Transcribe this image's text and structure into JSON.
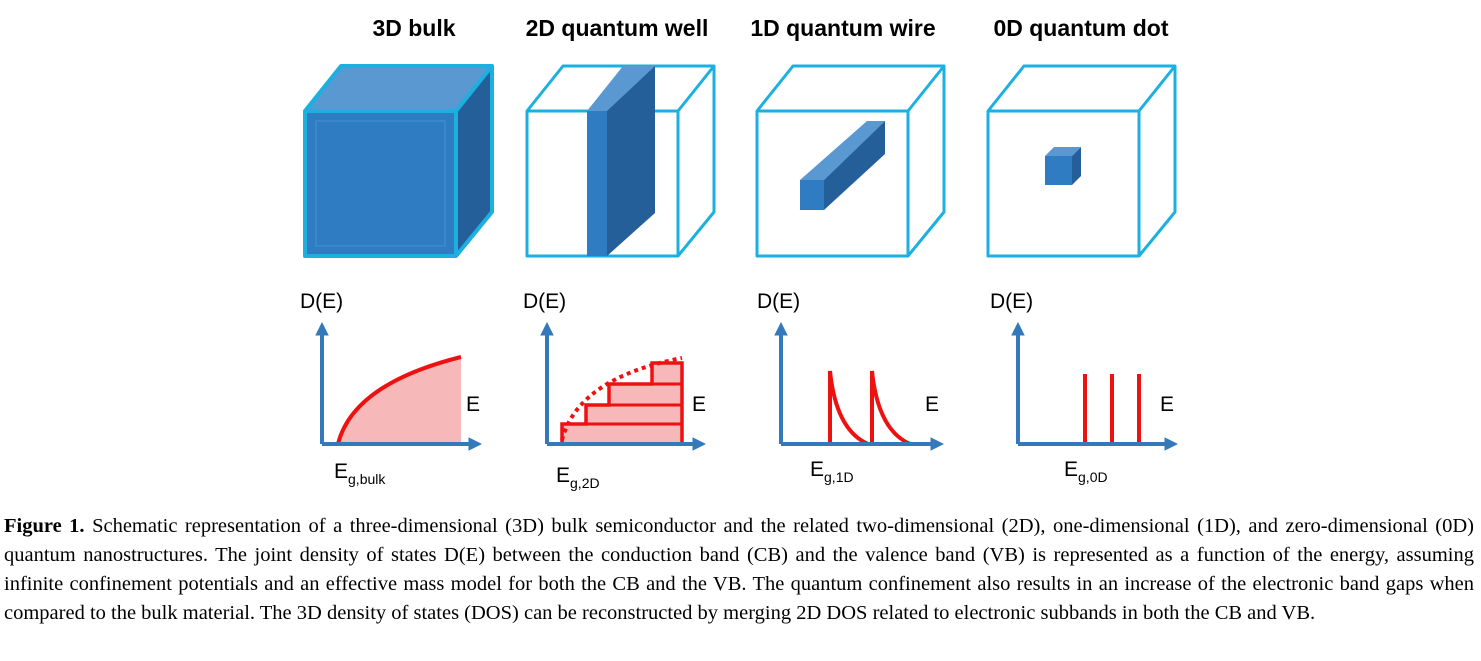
{
  "panels": [
    {
      "title": "3D bulk",
      "ylabel": "D(E)",
      "xlabel": "E",
      "eg_main": "E",
      "eg_sub": "g,bulk"
    },
    {
      "title": "2D quantum well",
      "ylabel": "D(E)",
      "xlabel": "E",
      "eg_main": "E",
      "eg_sub": "g,2D"
    },
    {
      "title": "1D quantum wire",
      "ylabel": "D(E)",
      "xlabel": "E",
      "eg_main": "E",
      "eg_sub": "g,1D"
    },
    {
      "title": "0D quantum dot",
      "ylabel": "D(E)",
      "xlabel": "E",
      "eg_main": "E",
      "eg_sub": "g,0D"
    }
  ],
  "caption": {
    "label": "Figure 1.",
    "text": "Schematic representation of a three-dimensional (3D) bulk semiconductor and the related two-dimensional (2D), one-dimensional (1D), and zero-dimensional (0D) quantum nanostructures. The joint density of states D(E) between the conduction band (CB) and the valence band (VB) is represented as a function of the energy, assuming infinite confinement potentials and an effective mass model for both the CB and the VB. The quantum confinement also results in an increase of the electronic band gaps when compared to the bulk material. The 3D density of states (DOS) can be reconstructed by merging 2D DOS related to electronic subbands in both the CB and VB."
  },
  "colors": {
    "cube_outline": "#1bb0e0",
    "solid_front": "#2f7cc3",
    "solid_top": "#5a98d2",
    "solid_side": "#255f99",
    "axis": "#3479b9",
    "dos_line": "#ee1111",
    "dos_fill": "#f6b8b8"
  }
}
